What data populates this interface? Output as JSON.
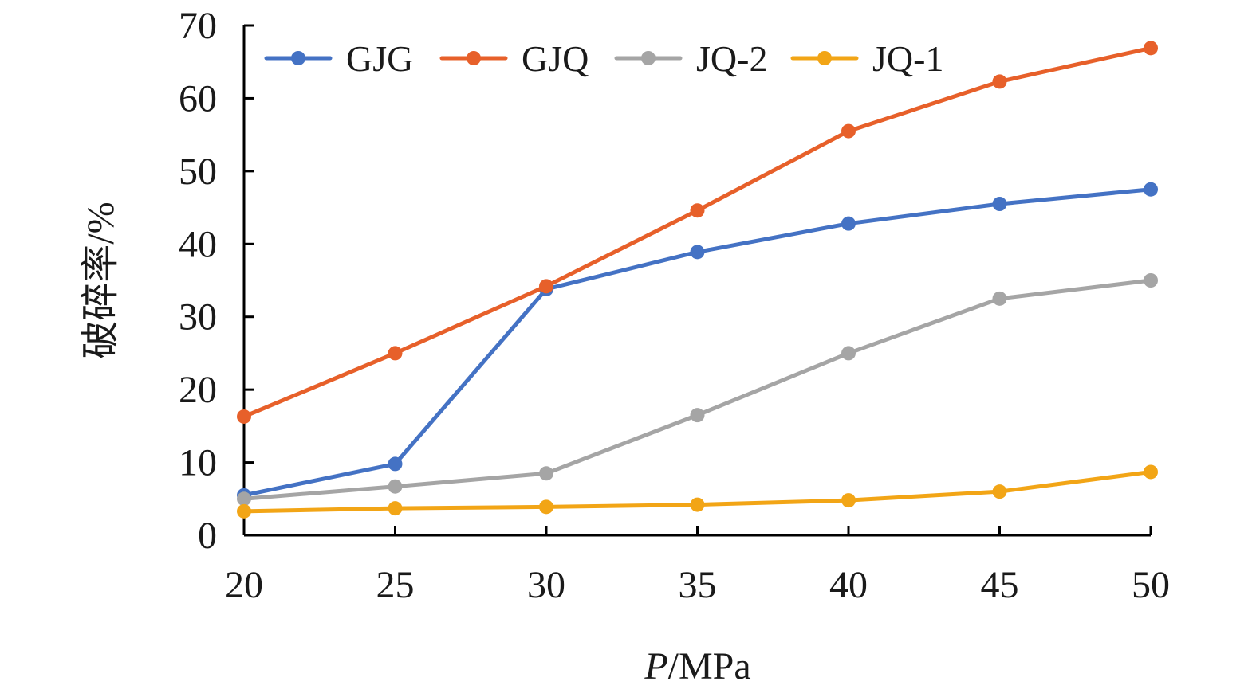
{
  "chart_data": {
    "type": "line",
    "xlabel_italic": "P",
    "xlabel_rest": "/MPa",
    "ylabel": "破碎率/%",
    "xlim": [
      20,
      50
    ],
    "ylim": [
      0,
      70
    ],
    "xticks": [
      20,
      25,
      30,
      35,
      40,
      45,
      50
    ],
    "yticks": [
      0,
      10,
      20,
      30,
      40,
      50,
      60,
      70
    ],
    "legend_position": "top",
    "x": [
      20,
      25,
      30,
      35,
      40,
      45,
      50
    ],
    "series": [
      {
        "name": "GJG",
        "color": "#4472C4",
        "values": [
          5.5,
          9.8,
          33.8,
          38.9,
          42.8,
          45.5,
          47.5
        ]
      },
      {
        "name": "GJQ",
        "color": "#E7602A",
        "values": [
          16.3,
          25.0,
          34.2,
          44.6,
          55.5,
          62.3,
          66.9
        ]
      },
      {
        "name": "JQ-2",
        "color": "#A5A5A5",
        "values": [
          5.0,
          6.7,
          8.5,
          16.5,
          25.0,
          32.5,
          35.0
        ]
      },
      {
        "name": "JQ-1",
        "color": "#F2A516",
        "values": [
          3.3,
          3.7,
          3.9,
          4.2,
          4.8,
          6.0,
          8.7
        ]
      }
    ]
  }
}
